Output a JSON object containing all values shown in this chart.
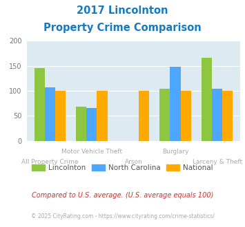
{
  "title_line1": "2017 Lincolnton",
  "title_line2": "Property Crime Comparison",
  "title_color": "#1a7abf",
  "categories": [
    "All Property Crime",
    "Motor Vehicle Theft",
    "Arson",
    "Burglary",
    "Larceny & Theft"
  ],
  "lincolnton": [
    146,
    68,
    0,
    104,
    166
  ],
  "north_carolina": [
    107,
    65,
    0,
    148,
    104
  ],
  "national": [
    100,
    100,
    100,
    100,
    100
  ],
  "bar_colors": {
    "lincolnton": "#8dc63f",
    "north_carolina": "#4da6ff",
    "national": "#ffaa00"
  },
  "ylim": [
    0,
    200
  ],
  "yticks": [
    0,
    50,
    100,
    150,
    200
  ],
  "background_color": "#ddeaf2",
  "legend_labels": [
    "Lincolnton",
    "North Carolina",
    "National"
  ],
  "footnote1": "Compared to U.S. average. (U.S. average equals 100)",
  "footnote2": "© 2025 CityRating.com - https://www.cityrating.com/crime-statistics/",
  "footnote1_color": "#cc3333",
  "footnote2_color": "#aaaaaa",
  "tick_label_color": "#aaaaaa",
  "tick_label_fontsize": 6.5,
  "bar_width": 0.25,
  "group_positions": [
    0,
    1,
    2,
    3,
    4
  ]
}
